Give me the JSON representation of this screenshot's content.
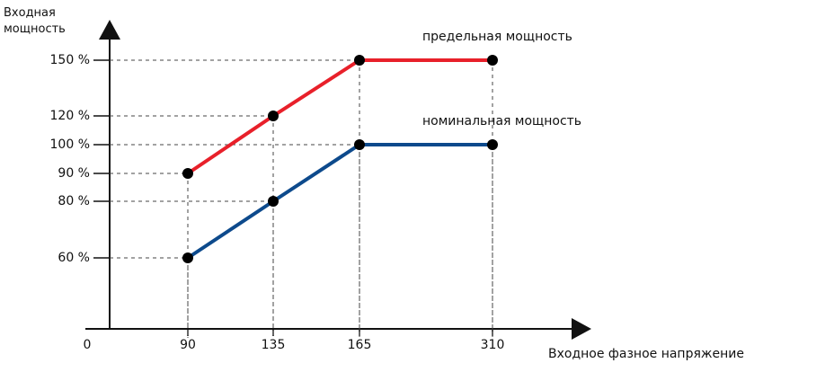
{
  "chart_data": {
    "type": "line",
    "ylabel": "Входная мощность",
    "xlabel": "Входное фазное напряжение",
    "x": [
      90,
      135,
      165,
      310
    ],
    "xticks": [
      0,
      90,
      135,
      165,
      310
    ],
    "yticks": [
      {
        "value": 60,
        "label": "60 %"
      },
      {
        "value": 80,
        "label": "80 %"
      },
      {
        "value": 90,
        "label": "90 %"
      },
      {
        "value": 100,
        "label": "100 %"
      },
      {
        "value": 120,
        "label": "120 %"
      },
      {
        "value": 150,
        "label": "150 %"
      }
    ],
    "series": [
      {
        "name": "предельная мощность",
        "color": "#e8202a",
        "values": [
          90,
          120,
          150,
          150
        ]
      },
      {
        "name": "номинальная мощность",
        "color": "#0d4a8c",
        "values": [
          60,
          80,
          100,
          100
        ]
      }
    ]
  }
}
